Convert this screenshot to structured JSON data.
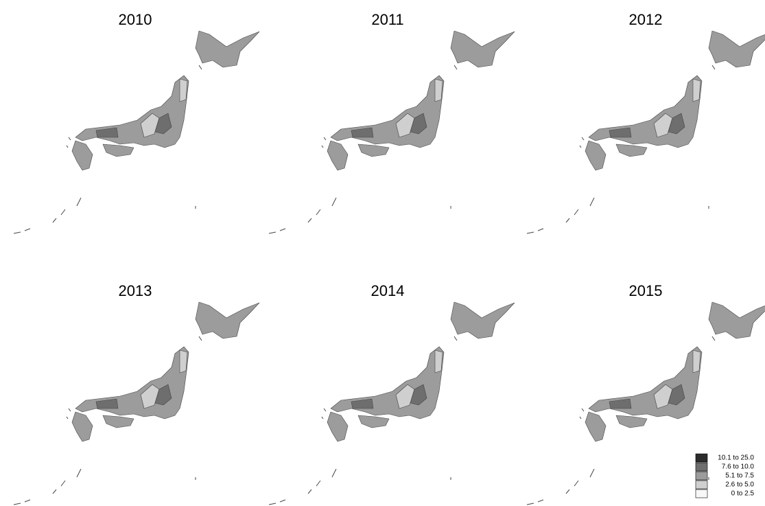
{
  "maps": [
    {
      "title": "2010"
    },
    {
      "title": "2011"
    },
    {
      "title": "2012"
    },
    {
      "title": "2013"
    },
    {
      "title": "2014"
    },
    {
      "title": "2015"
    }
  ],
  "legend": {
    "items": [
      {
        "label": "10.1 to 25.0",
        "color": "#2b2b2b"
      },
      {
        "label": "7.6 to 10.0",
        "color": "#6e6e6e"
      },
      {
        "label": "5.1 to  7.5",
        "color": "#9c9c9c"
      },
      {
        "label": "2.6 to  5.0",
        "color": "#cfcfcf"
      },
      {
        "label": "0 to  2.5",
        "color": "#f7f7f7"
      }
    ]
  }
}
